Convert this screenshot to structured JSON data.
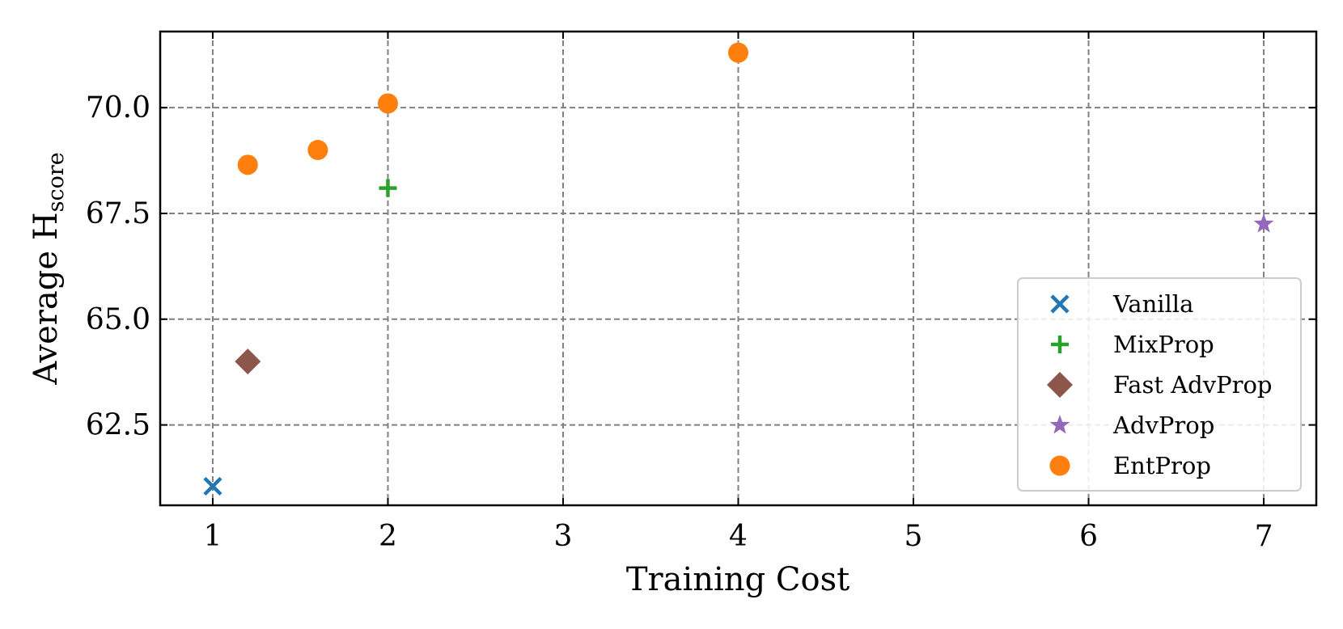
{
  "chart_data": {
    "type": "scatter",
    "xlabel": "Training Cost",
    "ylabel": {
      "main": "Average H",
      "subscript": "score"
    },
    "xlim": [
      0.7,
      7.3
    ],
    "ylim": [
      60.6,
      71.8
    ],
    "x_ticks": [
      {
        "value": 1,
        "label": "1"
      },
      {
        "value": 2,
        "label": "2"
      },
      {
        "value": 3,
        "label": "3"
      },
      {
        "value": 4,
        "label": "4"
      },
      {
        "value": 5,
        "label": "5"
      },
      {
        "value": 6,
        "label": "6"
      },
      {
        "value": 7,
        "label": "7"
      }
    ],
    "y_ticks": [
      {
        "value": 62.5,
        "label": "62.5"
      },
      {
        "value": 65.0,
        "label": "65.0"
      },
      {
        "value": 67.5,
        "label": "67.5"
      },
      {
        "value": 70.0,
        "label": "70.0"
      }
    ],
    "grid": true,
    "grid_style": "dashed",
    "legend_position": "lower-right",
    "series": [
      {
        "name": "Vanilla",
        "marker": "x",
        "color": "#1f77b4",
        "points": [
          {
            "x": 1.0,
            "y": 61.05
          }
        ]
      },
      {
        "name": "MixProp",
        "marker": "plus",
        "color": "#2ca02c",
        "points": [
          {
            "x": 2.0,
            "y": 68.1
          }
        ]
      },
      {
        "name": "Fast AdvProp",
        "marker": "diamond",
        "color": "#8c564b",
        "points": [
          {
            "x": 1.2,
            "y": 64.0
          }
        ]
      },
      {
        "name": "AdvProp",
        "marker": "star",
        "color": "#9467bd",
        "points": [
          {
            "x": 7.0,
            "y": 67.25
          }
        ]
      },
      {
        "name": "EntProp",
        "marker": "circle",
        "color": "#ff7f0e",
        "points": [
          {
            "x": 1.2,
            "y": 68.65
          },
          {
            "x": 1.6,
            "y": 69.0
          },
          {
            "x": 2.0,
            "y": 70.1
          },
          {
            "x": 4.0,
            "y": 71.3
          }
        ]
      }
    ]
  }
}
